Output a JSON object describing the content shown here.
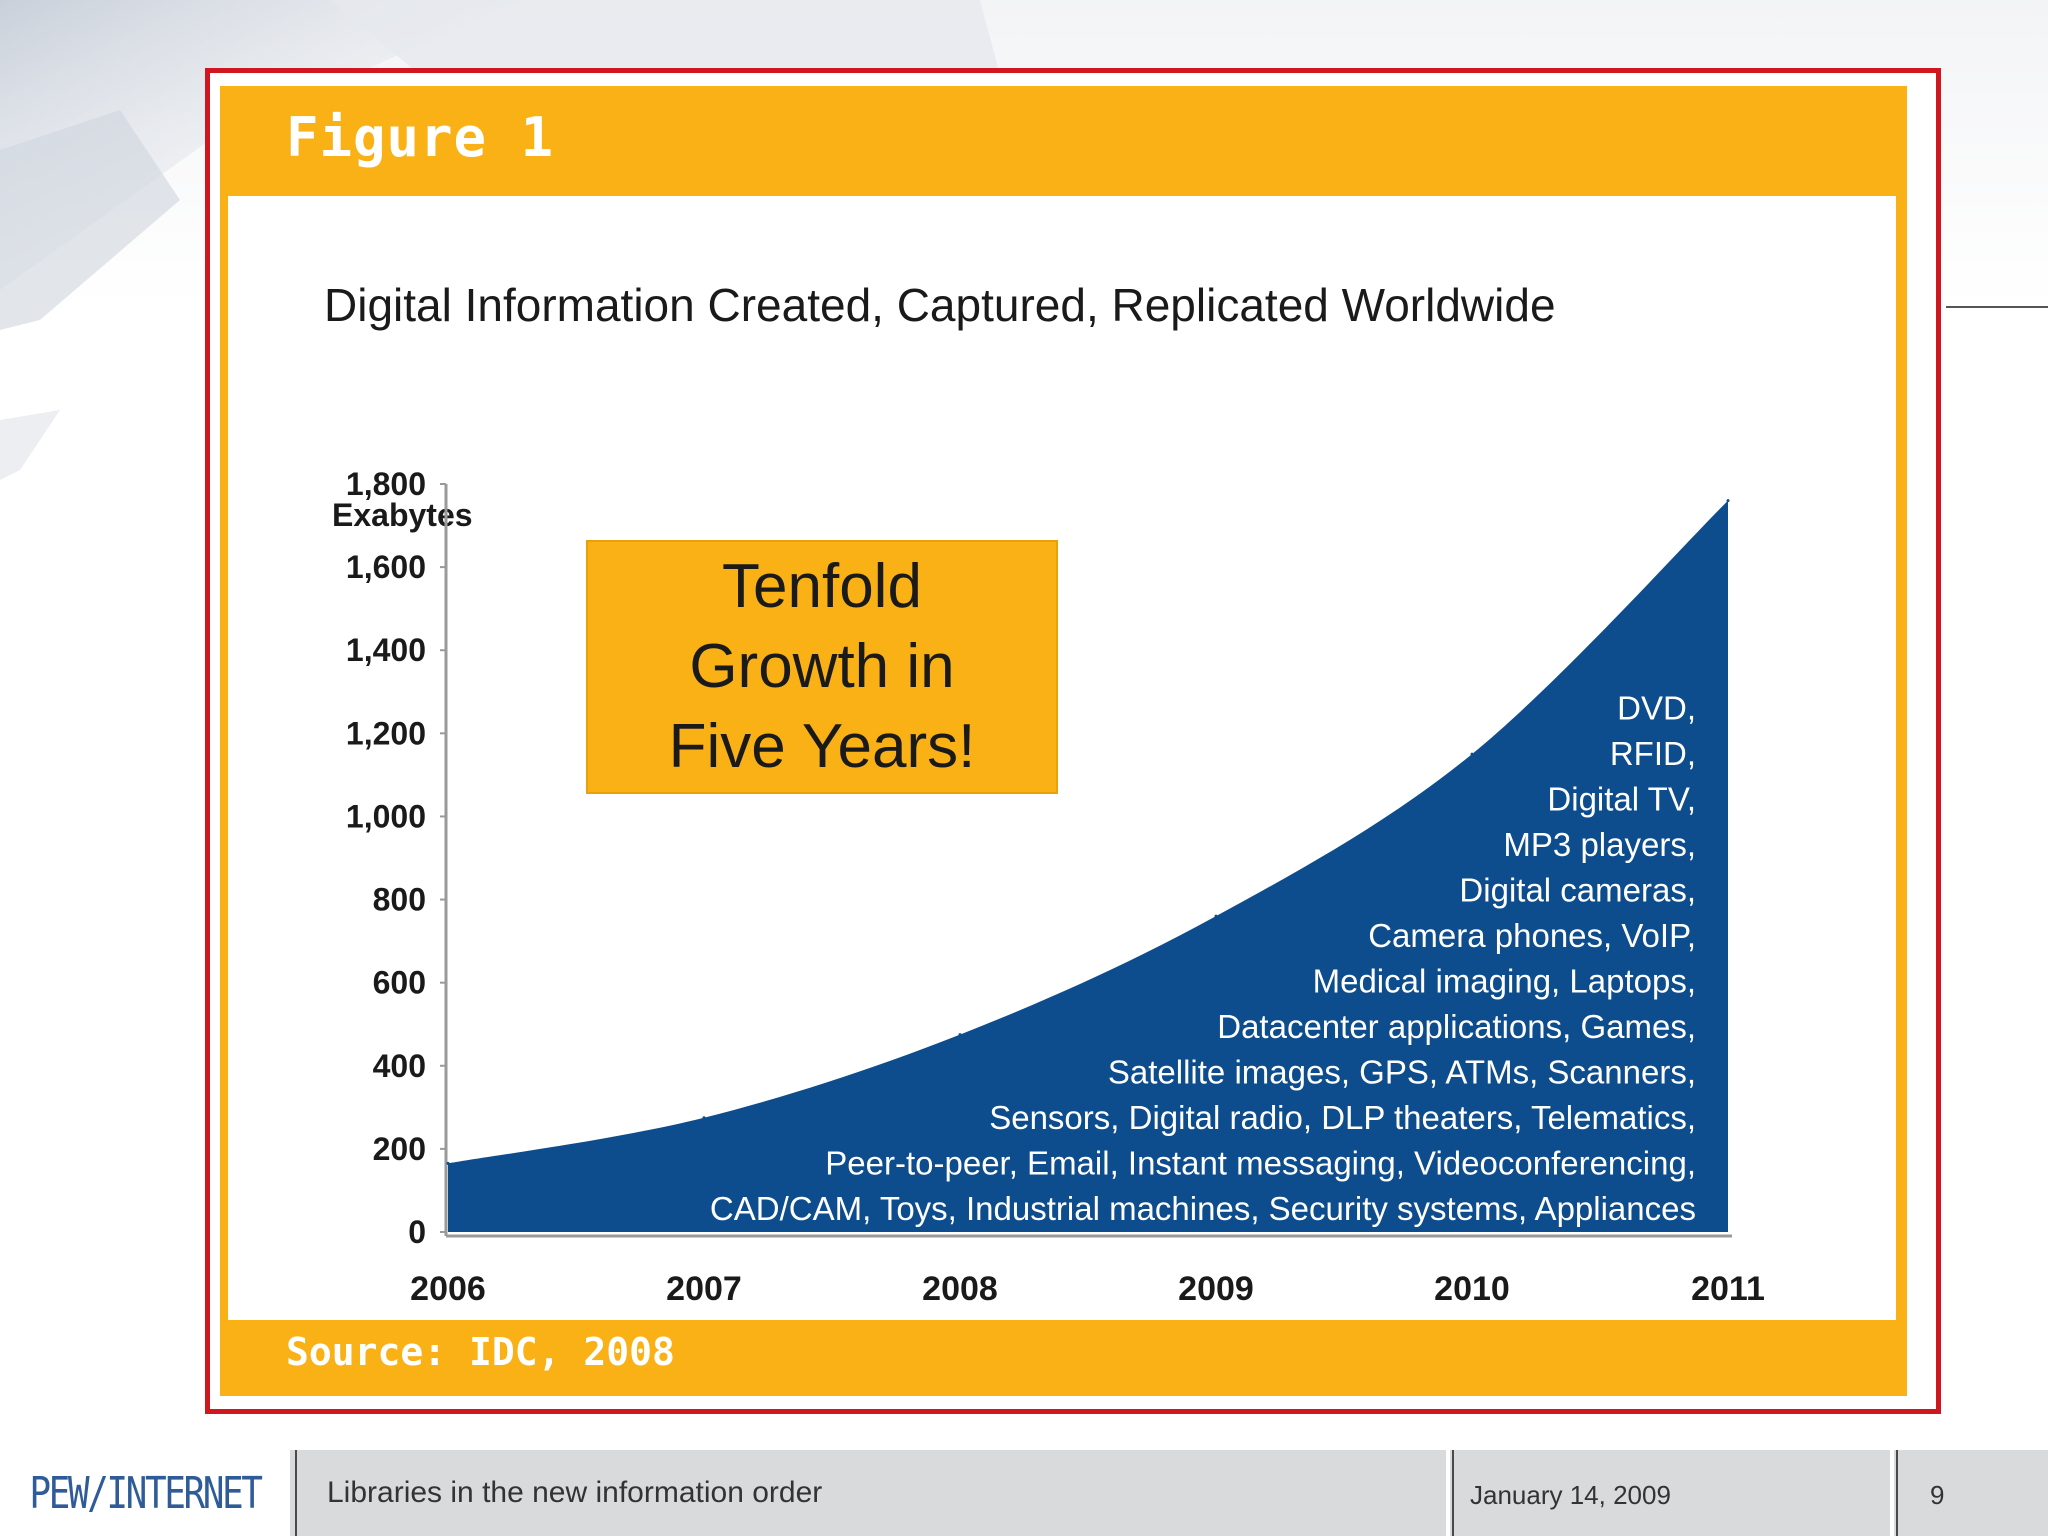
{
  "figure": {
    "label": "Figure 1",
    "source": "Source: IDC, 2008"
  },
  "callout": {
    "text": "Tenfold\nGrowth in\nFive Years!"
  },
  "footer": {
    "logo_text": "PEW/INTERNET",
    "subtitle": "Libraries in the new information order",
    "date": "January 14, 2009",
    "page": "9"
  },
  "colors": {
    "frame_red": "#d0161f",
    "figure_gold": "#f9b116",
    "area_blue": "#0d4c8d",
    "logo_blue": "#2f5c99"
  },
  "chart_data": {
    "type": "area",
    "title": "Digital Information Created, Captured, Replicated Worldwide",
    "ylabel": "Exabytes",
    "xlabel": "",
    "x": [
      "2006",
      "2007",
      "2008",
      "2009",
      "2010",
      "2011"
    ],
    "series": [
      {
        "values": [
          165,
          275,
          475,
          760,
          1150,
          1760
        ]
      }
    ],
    "ylim": [
      0,
      1800
    ],
    "yticks": [
      0,
      200,
      400,
      600,
      800,
      1000,
      1200,
      1400,
      1600,
      1800
    ],
    "ytick_labels": [
      "0",
      "200",
      "400",
      "600",
      "800",
      "1,000",
      "1,200",
      "1,400",
      "1,600",
      "1,800"
    ],
    "grid": false,
    "annotations": [
      "DVD,",
      "RFID,",
      "Digital TV,",
      "MP3 players,",
      "Digital cameras,",
      "Camera phones, VoIP,",
      "Medical imaging, Laptops,",
      "Datacenter applications, Games,",
      "Satellite images, GPS, ATMs, Scanners,",
      "Sensors, Digital radio, DLP theaters, Telematics,",
      "Peer-to-peer, Email, Instant messaging, Videoconferencing,",
      "CAD/CAM, Toys, Industrial machines, Security systems, Appliances"
    ]
  }
}
